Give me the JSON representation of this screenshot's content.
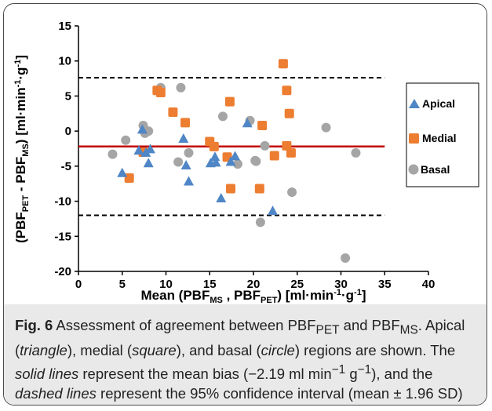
{
  "chart_data": {
    "type": "scatter",
    "xlabel": "Mean (PBF_MS , PBF_PET) [ml·min⁻¹·g⁻¹]",
    "ylabel": "(PBF_PET - PBF_MS) [ml·min⁻¹·g⁻¹]",
    "xlim": [
      0,
      40
    ],
    "ylim": [
      -20,
      15
    ],
    "x_ticks": [
      "0",
      "5",
      "10",
      "15",
      "20",
      "25",
      "30",
      "35",
      "40"
    ],
    "y_ticks": [
      "15",
      "10",
      "5",
      "0",
      "-5",
      "-10",
      "-15",
      "-20"
    ],
    "grid": false,
    "legend_position": "right",
    "mean_bias": -2.19,
    "upper_limit": 7.6,
    "lower_limit": -12.0,
    "colors": {
      "apical": "#4f86c6",
      "medial": "#ed7d31",
      "basal": "#a5a5a5",
      "mean_line": "#c00000",
      "limit_line": "#000000"
    },
    "series": [
      {
        "name": "Apical",
        "marker": "triangle",
        "points": [
          [
            5.0,
            -6.0
          ],
          [
            6.9,
            -2.8
          ],
          [
            7.3,
            0.2
          ],
          [
            7.7,
            -3.1
          ],
          [
            8.0,
            -4.6
          ],
          [
            8.2,
            -2.6
          ],
          [
            12.0,
            -1.1
          ],
          [
            12.3,
            -4.9
          ],
          [
            12.6,
            -7.2
          ],
          [
            15.1,
            -4.6
          ],
          [
            15.6,
            -3.7
          ],
          [
            15.7,
            -4.5
          ],
          [
            16.3,
            -9.6
          ],
          [
            17.4,
            -4.4
          ],
          [
            17.9,
            -3.6
          ],
          [
            19.3,
            1.1
          ],
          [
            22.2,
            -11.4
          ]
        ]
      },
      {
        "name": "Medial",
        "marker": "square",
        "points": [
          [
            5.8,
            -6.7
          ],
          [
            7.4,
            -3.0
          ],
          [
            9.0,
            5.8
          ],
          [
            9.4,
            5.5
          ],
          [
            10.8,
            2.7
          ],
          [
            12.2,
            1.2
          ],
          [
            15.0,
            -1.5
          ],
          [
            15.5,
            -2.2
          ],
          [
            17.0,
            -3.7
          ],
          [
            17.3,
            4.2
          ],
          [
            17.4,
            -8.2
          ],
          [
            20.7,
            -8.2
          ],
          [
            21.0,
            0.8
          ],
          [
            22.4,
            -3.5
          ],
          [
            23.4,
            9.6
          ],
          [
            23.8,
            5.8
          ],
          [
            23.8,
            -2.1
          ],
          [
            24.1,
            2.5
          ],
          [
            24.3,
            -3.1
          ]
        ]
      },
      {
        "name": "Basal",
        "marker": "circle",
        "points": [
          [
            3.9,
            -3.3
          ],
          [
            5.4,
            -1.3
          ],
          [
            7.4,
            0.8
          ],
          [
            7.6,
            -0.3
          ],
          [
            8.0,
            0.0
          ],
          [
            9.4,
            6.2
          ],
          [
            11.4,
            -4.4
          ],
          [
            11.7,
            6.2
          ],
          [
            12.6,
            -3.1
          ],
          [
            16.5,
            2.1
          ],
          [
            18.2,
            -4.7
          ],
          [
            19.6,
            1.5
          ],
          [
            20.2,
            -4.2
          ],
          [
            20.3,
            -4.3
          ],
          [
            20.8,
            -13.0
          ],
          [
            21.3,
            -2.1
          ],
          [
            24.4,
            -8.7
          ],
          [
            28.3,
            0.5
          ],
          [
            30.5,
            -18.1
          ],
          [
            31.7,
            -3.1
          ]
        ]
      }
    ]
  },
  "caption": {
    "label": "Fig. 6",
    "s1": " Assessment of agreement between PBF",
    "sub_pet_1": "PET",
    "s2": " and PBF",
    "sub_ms_1": "MS",
    "s3": ". Apical (",
    "triangle": "triangle",
    "s4": "), medial (",
    "square": "square",
    "s5": "), and basal (",
    "circle": "circle",
    "s6": ") regions are shown. The ",
    "solid_lines": "solid lines",
    "s7": " represent the mean bias (−2.19 ml min",
    "sup1": "−1",
    "s8": " g",
    "sup2": "−1",
    "s9": "), and the ",
    "dashed_lines": "dashed lines",
    "s10": " represent the 95% confidence interval (mean ± 1.96 SD)"
  }
}
